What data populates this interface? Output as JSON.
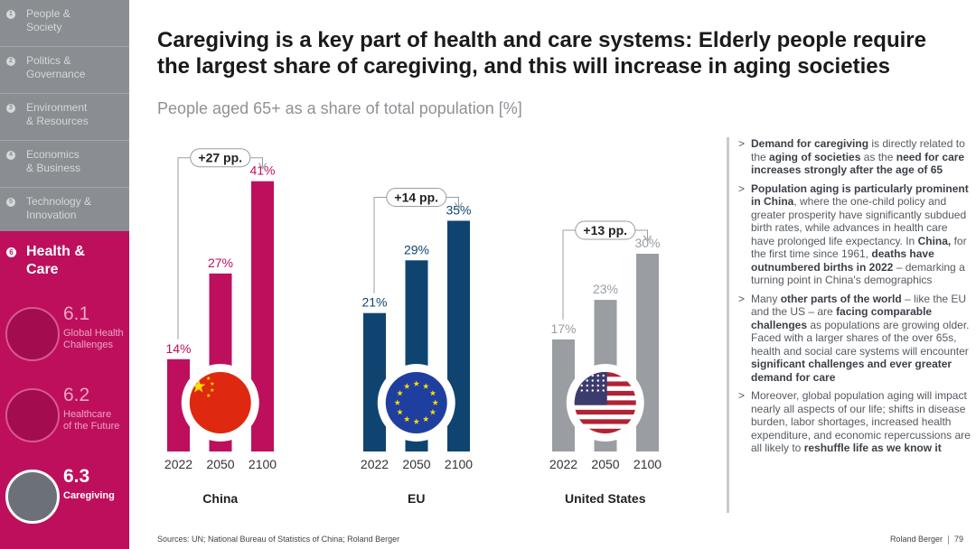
{
  "sidebar": {
    "items": [
      {
        "num": "1",
        "label_line1": "People &",
        "label_line2": "Society"
      },
      {
        "num": "2",
        "label_line1": "Politics &",
        "label_line2": "Governance"
      },
      {
        "num": "3",
        "label_line1": "Environment",
        "label_line2": "& Resources"
      },
      {
        "num": "4",
        "label_line1": "Economics",
        "label_line2": "& Business"
      },
      {
        "num": "5",
        "label_line1": "Technology &",
        "label_line2": "Innovation"
      }
    ],
    "active": {
      "num": "6",
      "label_line1": "Health &",
      "label_line2": "Care"
    },
    "subs": [
      {
        "num": "6.1",
        "label_line1": "Global Health",
        "label_line2": "Challenges"
      },
      {
        "num": "6.2",
        "label_line1": "Healthcare",
        "label_line2": "of the Future"
      },
      {
        "num": "6.3",
        "label_line1": "Caregiving",
        "label_line2": ""
      }
    ]
  },
  "header": {
    "title": "Caregiving is a key part of health and care systems: Elderly people require the largest share of caregiving, and this will increase in aging societies",
    "subtitle": "People aged 65+ as a share of total population [%]"
  },
  "colors": {
    "china": "#be0f5d",
    "eu": "#0f4470",
    "us": "#9a9da2",
    "sidebar": "#8a8d91"
  },
  "chart_data": {
    "type": "bar",
    "title": "People aged 65+ as a share of total population [%]",
    "categories": [
      "2022",
      "2050",
      "2100"
    ],
    "ylim": [
      0,
      45
    ],
    "series": [
      {
        "name": "China",
        "values": [
          14,
          27,
          41
        ],
        "labels": [
          "14%",
          "27%",
          "41%"
        ],
        "change": "+27 pp."
      },
      {
        "name": "EU",
        "values": [
          21,
          29,
          35
        ],
        "labels": [
          "21%",
          "29%",
          "35%"
        ],
        "change": "+14 pp."
      },
      {
        "name": "United States",
        "values": [
          17,
          23,
          30
        ],
        "labels": [
          "17%",
          "23%",
          "30%"
        ],
        "change": "+13 pp."
      }
    ]
  },
  "bullets": [
    {
      "segments": [
        {
          "t": "Demand for caregiving",
          "b": true
        },
        {
          "t": " is directly related to the ",
          "b": false
        },
        {
          "t": "aging of societies",
          "b": true
        },
        {
          "t": " as the ",
          "b": false
        },
        {
          "t": "need for care increases strongly after the age of 65",
          "b": true
        }
      ]
    },
    {
      "segments": [
        {
          "t": "Population aging is particularly prominent in China",
          "b": true
        },
        {
          "t": ", where the one-child policy and greater prosperity have significantly subdued birth rates, while advances in health care have prolonged life expectancy. In ",
          "b": false
        },
        {
          "t": "China,",
          "b": true
        },
        {
          "t": " for the first time since 1961, ",
          "b": false
        },
        {
          "t": "deaths have outnumbered births in 2022",
          "b": true
        },
        {
          "t": " – demarking a turning point in China's demographics",
          "b": false
        }
      ]
    },
    {
      "segments": [
        {
          "t": "Many ",
          "b": false
        },
        {
          "t": "other parts of the world",
          "b": true
        },
        {
          "t": " – like the EU and the US – are ",
          "b": false
        },
        {
          "t": "facing comparable challenges",
          "b": true
        },
        {
          "t": " as populations are growing older. Faced with a larger shares of the over 65s, health and social care systems will encounter ",
          "b": false
        },
        {
          "t": "significant challenges and ever greater demand for care",
          "b": true
        }
      ]
    },
    {
      "segments": [
        {
          "t": "Moreover, global population aging will impact nearly all aspects of our life; shifts in disease burden, labor shortages, increased health expenditure, and economic repercussions are all likely to ",
          "b": false
        },
        {
          "t": "reshuffle life as we know it",
          "b": true
        }
      ]
    }
  ],
  "footer": {
    "sources": "Sources: UN; National Bureau of Statistics of China; Roland Berger",
    "brand": "Roland Berger",
    "page": "79"
  }
}
